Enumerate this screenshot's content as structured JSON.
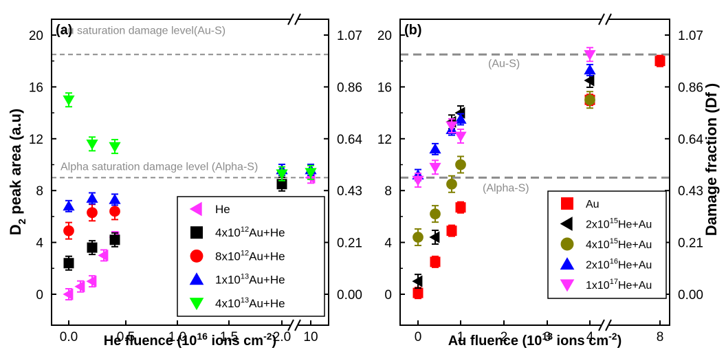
{
  "chart_data": [
    {
      "type": "scatter",
      "panel_label": "(a)",
      "xlabel_main": "He fluence (10",
      "xlabel_exp": "16",
      "xlabel_rest": " ions cm",
      "xlabel_exp2": "-2",
      "xlabel_close": ")",
      "ylabel_pre": "D",
      "ylabel_sub": "2",
      "ylabel_post": " peak area (a.u)",
      "ylim": [
        0,
        20
      ],
      "y2lim": [
        0.0,
        1.07
      ],
      "y_ticks": [
        "0",
        "4",
        "8",
        "12",
        "16",
        "20"
      ],
      "y2_ticks": [
        "0.00",
        "0.21",
        "0.43",
        "0.64",
        "0.86",
        "1.07"
      ],
      "x_ticks": [
        "0.0",
        "0.5",
        "1.0",
        "1.5",
        "2.0",
        "10"
      ],
      "x_break": "between 2.0 and 10",
      "reference_lines": [
        {
          "label": "Au saturation damage level(Au-S)",
          "y": 18.5
        },
        {
          "label": "Alpha saturation damage level (Alpha-S)",
          "y": 9.0
        }
      ],
      "legend_position": "lower-right",
      "series": [
        {
          "name": "He",
          "color": "#ff33ff",
          "marker": "triangle-left",
          "x": [
            "0.0",
            "0.1",
            "0.2",
            "0.3",
            "0.4",
            "10"
          ],
          "y": [
            0.0,
            0.6,
            1.0,
            3.0,
            4.4,
            9.0
          ]
        },
        {
          "name": "4x10^12Au+He",
          "name_pre": "4x10",
          "name_exp": "12",
          "name_post": "Au+He",
          "color": "#000000",
          "marker": "square",
          "x": [
            "0.0",
            "0.2",
            "0.4",
            "2.0"
          ],
          "y": [
            2.4,
            3.6,
            4.2,
            8.5
          ]
        },
        {
          "name": "8x10^12Au+He",
          "name_pre": "8x10",
          "name_exp": "12",
          "name_post": "Au+He",
          "color": "#ff0000",
          "marker": "circle",
          "x": [
            "0.0",
            "0.2",
            "0.4"
          ],
          "y": [
            4.9,
            6.3,
            6.4
          ]
        },
        {
          "name": "1x10^13Au+He",
          "name_pre": "1x10",
          "name_exp": "13",
          "name_post": "Au+He",
          "color": "#0000ff",
          "marker": "triangle-up",
          "x": [
            "0.0",
            "0.2",
            "0.4",
            "2.0",
            "10"
          ],
          "y": [
            6.8,
            7.4,
            7.3,
            9.6,
            9.6
          ]
        },
        {
          "name": "4x10^13Au+He",
          "name_pre": "4x10",
          "name_exp": "13",
          "name_post": "Au+He",
          "color": "#00ff00",
          "marker": "triangle-down",
          "x": [
            "0.0",
            "0.2",
            "0.4",
            "2.0",
            "10"
          ],
          "y": [
            15.0,
            11.6,
            11.4,
            9.3,
            9.4
          ]
        }
      ]
    },
    {
      "type": "scatter",
      "panel_label": "(b)",
      "xlabel_main": "Au fluence (10",
      "xlabel_exp": "13",
      "xlabel_rest": " ions cm",
      "xlabel_exp2": "-2",
      "xlabel_close": ")",
      "y2label": "Damage fraction (Df )",
      "ylim": [
        0,
        20
      ],
      "y2lim": [
        0.0,
        1.07
      ],
      "y_ticks": [
        "0",
        "4",
        "8",
        "12",
        "16",
        "20"
      ],
      "y2_ticks": [
        "0.00",
        "0.21",
        "0.43",
        "0.64",
        "0.86",
        "1.07"
      ],
      "x_ticks": [
        "0",
        "1",
        "2",
        "3",
        "4",
        "8"
      ],
      "x_break": "between 4 and 8",
      "reference_lines": [
        {
          "label": "(Au-S)",
          "y": 18.5
        },
        {
          "label": "(Alpha-S)",
          "y": 9.0
        }
      ],
      "legend_position": "lower-right",
      "series": [
        {
          "name": "Au",
          "name_pre": "Au",
          "name_exp": "",
          "name_post": "",
          "color": "#ff0000",
          "marker": "square",
          "x": [
            "0.0",
            "0.4",
            "0.8",
            "1.0",
            "4.0",
            "8.0"
          ],
          "y": [
            0.1,
            2.5,
            4.9,
            6.7,
            15.0,
            18.0
          ]
        },
        {
          "name": "2x10^15He+Au",
          "name_pre": "2x10",
          "name_exp": "15",
          "name_post": "He+Au",
          "color": "#000000",
          "marker": "triangle-left",
          "x": [
            "0.0",
            "0.4",
            "0.8",
            "1.0",
            "4.0"
          ],
          "y": [
            1.0,
            4.4,
            13.3,
            14.0,
            16.5
          ]
        },
        {
          "name": "4x10^15He+Au",
          "name_pre": "4x10",
          "name_exp": "15",
          "name_post": "He+Au",
          "color": "#808000",
          "marker": "circle",
          "x": [
            "0.0",
            "0.4",
            "0.8",
            "1.0",
            "4.0"
          ],
          "y": [
            4.4,
            6.2,
            8.5,
            10.0,
            15.0
          ]
        },
        {
          "name": "2x10^16He+Au",
          "name_pre": "2x10",
          "name_exp": "16",
          "name_post": "He+Au",
          "color": "#0000ff",
          "marker": "triangle-up",
          "x": [
            "0.0",
            "0.4",
            "0.8",
            "1.0",
            "4.0"
          ],
          "y": [
            9.2,
            11.2,
            12.7,
            13.5,
            17.3
          ]
        },
        {
          "name": "1x10^17He+Au",
          "name_pre": "1x10",
          "name_exp": "17",
          "name_post": "He+Au",
          "color": "#ff33ff",
          "marker": "triangle-down",
          "x": [
            "0.0",
            "0.4",
            "0.8",
            "1.0",
            "4.0"
          ],
          "y": [
            8.8,
            9.8,
            13.0,
            12.2,
            18.5
          ]
        }
      ]
    }
  ]
}
